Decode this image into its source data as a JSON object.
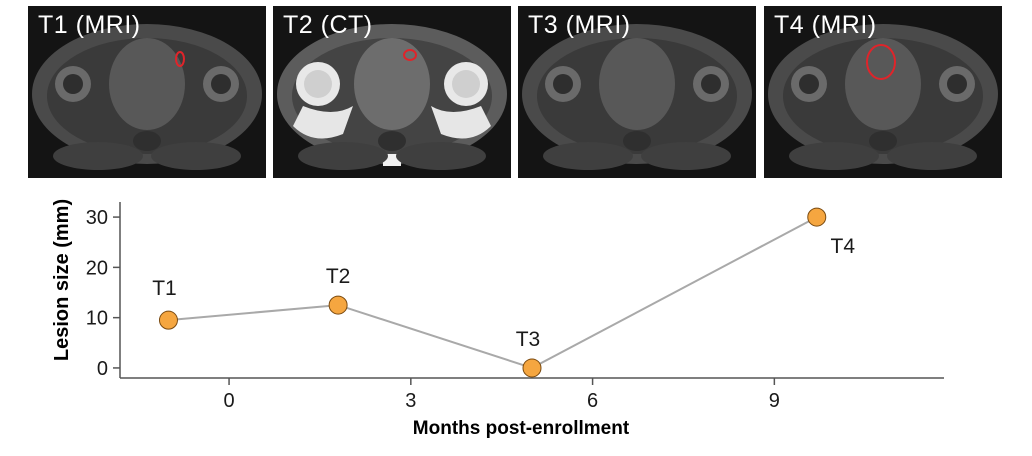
{
  "panels": [
    {
      "label": "T1 (MRI)",
      "modality": "MRI",
      "roi_color": "#e0242a"
    },
    {
      "label": "T2 (CT)",
      "modality": "CT",
      "roi_color": "#e0242a"
    },
    {
      "label": "T3 (MRI)",
      "modality": "MRI",
      "roi_color": ""
    },
    {
      "label": "T4 (MRI)",
      "modality": "MRI",
      "roi_color": "#e0242a"
    }
  ],
  "chart_data": {
    "type": "line",
    "title": "",
    "xlabel": "Months post-enrollment",
    "ylabel": "Lesion size (mm)",
    "xlim": [
      -1.8,
      11.8
    ],
    "ylim": [
      -2,
      33
    ],
    "xticks": [
      0,
      3,
      6,
      9
    ],
    "yticks": [
      0,
      10,
      20,
      30
    ],
    "grid": false,
    "series": [
      {
        "x": [
          -1.0,
          1.8,
          5.0,
          9.7
        ],
        "y": [
          9.5,
          12.5,
          0,
          30
        ],
        "point_labels": [
          "T1",
          "T2",
          "T3",
          "T4"
        ],
        "line_color": "#a9a9a9",
        "marker_fill": "#f5a640",
        "marker_edge": "#7a4a10"
      }
    ]
  }
}
